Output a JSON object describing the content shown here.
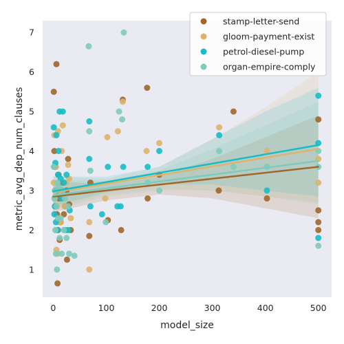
{
  "chart_data": {
    "type": "scatter",
    "xlabel": "model_size",
    "ylabel": "metric_avg_dep_num_clauses",
    "xlim": [
      -20,
      525
    ],
    "ylim": [
      0.3,
      7.3
    ],
    "xticks": [
      0,
      100,
      200,
      300,
      400,
      500
    ],
    "yticks": [
      1,
      2,
      3,
      4,
      5,
      6,
      7
    ],
    "grid": false,
    "legend_position": "top-right",
    "background": "#eaeaf2",
    "series": [
      {
        "name": "stamp-letter-send",
        "color": "#a0662a",
        "points": [
          [
            1,
            5.5
          ],
          [
            2,
            4.0
          ],
          [
            3,
            3.6
          ],
          [
            4,
            3.0
          ],
          [
            5,
            2.6
          ],
          [
            6,
            6.2
          ],
          [
            7,
            2.4
          ],
          [
            8,
            0.65
          ],
          [
            9,
            2.0
          ],
          [
            10,
            3.4
          ],
          [
            11,
            2.8
          ],
          [
            12,
            1.75
          ],
          [
            14,
            2.2
          ],
          [
            16,
            3.0
          ],
          [
            18,
            3.2
          ],
          [
            20,
            2.4
          ],
          [
            22,
            2.6
          ],
          [
            25,
            3.0
          ],
          [
            26,
            1.25
          ],
          [
            28,
            3.8
          ],
          [
            30,
            2.65
          ],
          [
            33,
            2.0
          ],
          [
            68,
            1.85
          ],
          [
            70,
            3.2
          ],
          [
            103,
            2.25
          ],
          [
            128,
            2.0
          ],
          [
            131,
            5.3
          ],
          [
            177,
            5.6
          ],
          [
            178,
            2.8
          ],
          [
            200,
            3.4
          ],
          [
            312,
            3.0
          ],
          [
            340,
            5.0
          ],
          [
            403,
            2.8
          ],
          [
            500,
            4.8
          ],
          [
            500,
            2.5
          ],
          [
            500,
            2.2
          ],
          [
            500,
            2.0
          ]
        ],
        "trend": {
          "x": [
            0,
            500
          ],
          "y": [
            2.85,
            3.6
          ]
        },
        "band": {
          "x": [
            0,
            100,
            200,
            300,
            400,
            500
          ],
          "lower": [
            2.45,
            2.75,
            2.9,
            2.8,
            2.55,
            2.3
          ],
          "upper": [
            3.25,
            3.15,
            3.35,
            3.8,
            4.35,
            4.9
          ]
        }
      },
      {
        "name": "gloom-payment-exist",
        "color": "#dcb46e",
        "points": [
          [
            1,
            3.2
          ],
          [
            2,
            4.4
          ],
          [
            3,
            2.8
          ],
          [
            4,
            2.0
          ],
          [
            5,
            3.6
          ],
          [
            6,
            1.5
          ],
          [
            7,
            2.6
          ],
          [
            8,
            1.4
          ],
          [
            9,
            4.5
          ],
          [
            10,
            2.2
          ],
          [
            12,
            3.0
          ],
          [
            14,
            2.2
          ],
          [
            16,
            4.0
          ],
          [
            18,
            4.65
          ],
          [
            20,
            2.8
          ],
          [
            22,
            2.6
          ],
          [
            24,
            3.2
          ],
          [
            26,
            2.0
          ],
          [
            28,
            3.65
          ],
          [
            30,
            3.3
          ],
          [
            33,
            2.3
          ],
          [
            68,
            2.2
          ],
          [
            68,
            1.0
          ],
          [
            98,
            2.8
          ],
          [
            102,
            4.35
          ],
          [
            122,
            4.5
          ],
          [
            131,
            5.25
          ],
          [
            176,
            4.0
          ],
          [
            200,
            4.2
          ],
          [
            313,
            4.6
          ],
          [
            403,
            4.0
          ],
          [
            500,
            3.8
          ],
          [
            500,
            3.2
          ]
        ],
        "trend": {
          "x": [
            0,
            500
          ],
          "y": [
            2.95,
            4.05
          ]
        },
        "band": {
          "x": [
            0,
            100,
            200,
            300,
            400,
            500
          ],
          "lower": [
            2.55,
            2.9,
            3.05,
            3.0,
            2.85,
            2.7
          ],
          "upper": [
            3.35,
            3.3,
            3.6,
            4.3,
            5.1,
            6.0
          ]
        }
      },
      {
        "name": "petrol-diesel-pump",
        "color": "#17bcc7",
        "points": [
          [
            1,
            4.6
          ],
          [
            2,
            2.4
          ],
          [
            3,
            2.6
          ],
          [
            4,
            3.7
          ],
          [
            5,
            2.2
          ],
          [
            6,
            4.4
          ],
          [
            7,
            3.0
          ],
          [
            8,
            2.0
          ],
          [
            9,
            3.4
          ],
          [
            10,
            4.0
          ],
          [
            12,
            5.0
          ],
          [
            14,
            3.3
          ],
          [
            16,
            2.8
          ],
          [
            18,
            5.0
          ],
          [
            20,
            3.2
          ],
          [
            22,
            2.0
          ],
          [
            25,
            3.4
          ],
          [
            28,
            2.0
          ],
          [
            31,
            2.5
          ],
          [
            68,
            4.75
          ],
          [
            68,
            3.8
          ],
          [
            70,
            2.6
          ],
          [
            92,
            2.4
          ],
          [
            103,
            3.6
          ],
          [
            121,
            2.6
          ],
          [
            127,
            2.6
          ],
          [
            132,
            3.6
          ],
          [
            178,
            3.6
          ],
          [
            200,
            4.0
          ],
          [
            313,
            4.4
          ],
          [
            403,
            3.0
          ],
          [
            500,
            5.4
          ],
          [
            500,
            4.2
          ],
          [
            500,
            1.8
          ]
        ],
        "trend": {
          "x": [
            0,
            500
          ],
          "y": [
            2.98,
            4.15
          ]
        },
        "band": {
          "x": [
            0,
            100,
            200,
            300,
            400,
            500
          ],
          "lower": [
            2.6,
            2.95,
            3.15,
            3.15,
            3.0,
            2.85
          ],
          "upper": [
            3.35,
            3.35,
            3.6,
            4.3,
            5.0,
            5.6
          ]
        }
      },
      {
        "name": "organ-empire-comply",
        "color": "#7ecbbb",
        "points": [
          [
            1,
            3.6
          ],
          [
            2,
            2.8
          ],
          [
            3,
            3.0
          ],
          [
            4,
            2.0
          ],
          [
            5,
            1.4
          ],
          [
            6,
            2.6
          ],
          [
            7,
            1.0
          ],
          [
            8,
            3.2
          ],
          [
            9,
            2.3
          ],
          [
            10,
            3.1
          ],
          [
            12,
            1.8
          ],
          [
            14,
            2.3
          ],
          [
            16,
            1.4
          ],
          [
            18,
            3.0
          ],
          [
            20,
            2.0
          ],
          [
            22,
            2.8
          ],
          [
            25,
            1.8
          ],
          [
            28,
            2.6
          ],
          [
            30,
            1.4
          ],
          [
            40,
            1.35
          ],
          [
            67,
            6.65
          ],
          [
            68,
            4.5
          ],
          [
            70,
            3.5
          ],
          [
            99,
            2.2
          ],
          [
            124,
            5.0
          ],
          [
            130,
            4.8
          ],
          [
            133,
            7.0
          ],
          [
            178,
            3.2
          ],
          [
            200,
            3.0
          ],
          [
            313,
            4.0
          ],
          [
            340,
            3.6
          ],
          [
            403,
            3.6
          ],
          [
            500,
            4.0
          ],
          [
            500,
            3.6
          ],
          [
            500,
            1.6
          ]
        ],
        "trend": {
          "x": [
            0,
            500
          ],
          "y": [
            2.88,
            3.75
          ]
        },
        "band": {
          "x": [
            0,
            100,
            200,
            300,
            400,
            500
          ],
          "lower": [
            2.5,
            2.85,
            3.0,
            3.0,
            2.85,
            2.65
          ],
          "upper": [
            3.25,
            3.25,
            3.5,
            4.05,
            4.65,
            5.25
          ]
        }
      }
    ]
  }
}
